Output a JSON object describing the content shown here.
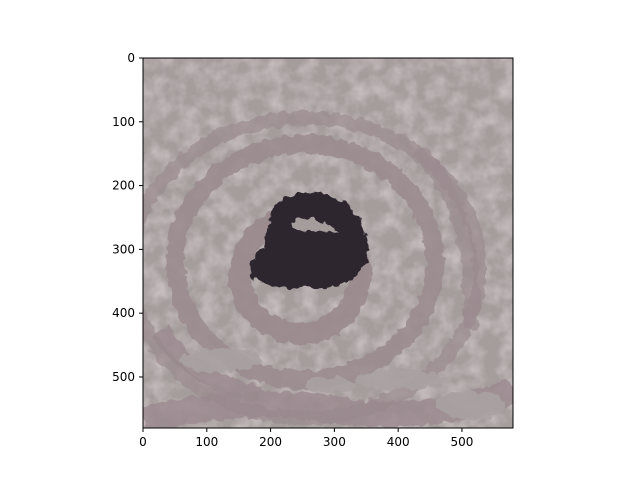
{
  "figure": {
    "kind": "image-plot",
    "image_description_colors": {
      "background_gray": "#a49a9a",
      "mid_mauve": "#9c8c8f",
      "dark_eye": "#2d252e",
      "light_band": "#a8a0a0"
    }
  },
  "axes": {
    "xlim": [
      0,
      580
    ],
    "ylim": [
      580,
      0
    ],
    "x_ticks": [
      "0",
      "100",
      "200",
      "300",
      "400",
      "500"
    ],
    "x_tick_values": [
      0,
      100,
      200,
      300,
      400,
      500
    ],
    "y_ticks": [
      "0",
      "100",
      "200",
      "300",
      "400",
      "500"
    ],
    "y_tick_values": [
      0,
      100,
      200,
      300,
      400,
      500
    ],
    "spine_color": "#000000",
    "grid": false
  }
}
